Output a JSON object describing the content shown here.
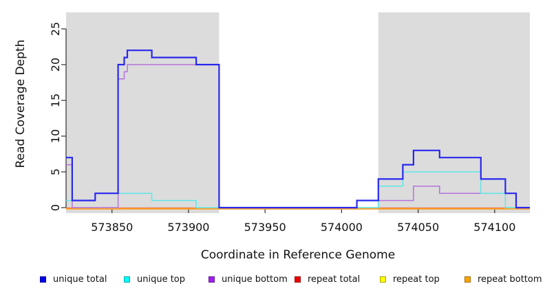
{
  "chart_data": {
    "type": "step-line",
    "title": "",
    "xlabel": "Coordinate in Reference Genome",
    "ylabel": "Read Coverage Depth",
    "xlim": [
      573820,
      574123
    ],
    "ylim": [
      0,
      27
    ],
    "x_ticks": [
      573850,
      573900,
      573950,
      574000,
      574050,
      574100
    ],
    "y_ticks": [
      0,
      5,
      10,
      15,
      20,
      25
    ],
    "grid": false,
    "legend_position": "bottom",
    "shaded_regions": [
      {
        "x_start": 573820,
        "x_end": 573920,
        "color": "#dcdcdc"
      },
      {
        "x_start": 574024,
        "x_end": 574123,
        "color": "#dcdcdc"
      }
    ],
    "series": [
      {
        "name": "repeat total",
        "line_color": "#e23d3d",
        "steps": [
          [
            573820,
            0
          ]
        ]
      },
      {
        "name": "repeat top",
        "line_color": "#f2e434",
        "steps": [
          [
            573820,
            0
          ]
        ]
      },
      {
        "name": "repeat bottom",
        "line_color": "#ffa126",
        "steps": [
          [
            573820,
            0
          ]
        ]
      },
      {
        "name": "unique bottom",
        "line_color": "#b472dd",
        "steps": [
          [
            573820,
            6
          ],
          [
            573824,
            0
          ],
          [
            573854,
            18
          ],
          [
            573858,
            19
          ],
          [
            573860,
            20
          ],
          [
            573920,
            0
          ],
          [
            574010,
            1
          ],
          [
            574047,
            3
          ],
          [
            574064,
            2
          ],
          [
            574114,
            0
          ]
        ]
      },
      {
        "name": "unique top",
        "line_color": "#5ce6e6",
        "steps": [
          [
            573820,
            1
          ],
          [
            573839,
            2
          ],
          [
            573876,
            1
          ],
          [
            573905,
            0
          ],
          [
            574024,
            3
          ],
          [
            574040,
            5
          ],
          [
            574091,
            2
          ],
          [
            574107,
            0
          ]
        ]
      },
      {
        "name": "unique total",
        "line_color": "#2727ee",
        "steps": [
          [
            573820,
            7
          ],
          [
            573824,
            1
          ],
          [
            573839,
            2
          ],
          [
            573854,
            20
          ],
          [
            573858,
            21
          ],
          [
            573860,
            22
          ],
          [
            573876,
            21
          ],
          [
            573905,
            20
          ],
          [
            573920,
            0
          ],
          [
            574010,
            1
          ],
          [
            574024,
            4
          ],
          [
            574040,
            6
          ],
          [
            574047,
            8
          ],
          [
            574064,
            7
          ],
          [
            574091,
            4
          ],
          [
            574107,
            2
          ],
          [
            574114,
            0
          ]
        ]
      }
    ],
    "legend": [
      {
        "label": "unique total",
        "fill": "#0000ee",
        "border": "#00009b"
      },
      {
        "label": "unique top",
        "fill": "#00ffff",
        "border": "#00a6a6"
      },
      {
        "label": "unique bottom",
        "fill": "#a020f0",
        "border": "#68159c"
      },
      {
        "label": "repeat total",
        "fill": "#ee0000",
        "border": "#9b0000"
      },
      {
        "label": "repeat top",
        "fill": "#ffff00",
        "border": "#a6a600"
      },
      {
        "label": "repeat bottom",
        "fill": "#ffa500",
        "border": "#a66b00"
      }
    ]
  }
}
